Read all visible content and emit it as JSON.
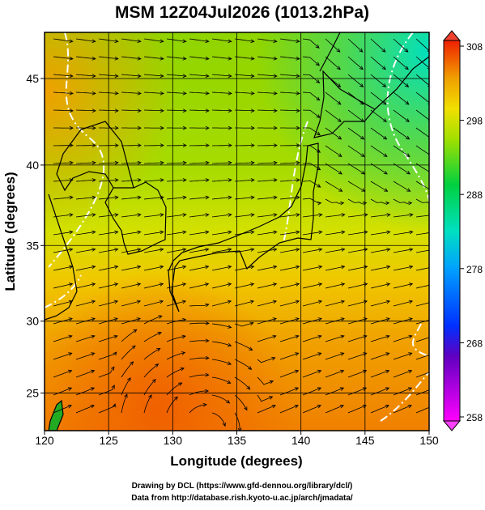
{
  "chart_data": {
    "type": "map",
    "title": "MSM 12Z04Jul2026 (1013.2hPa)",
    "x_label": "Longitude (degrees)",
    "y_label": "Latitude  (degrees)",
    "xlim": [
      120,
      150
    ],
    "xticks": [
      120,
      125,
      130,
      135,
      140,
      145,
      150
    ],
    "ylim": [
      22.3,
      47.5
    ],
    "yticks": [
      25,
      30,
      35,
      40,
      45
    ],
    "colorbar": {
      "lim": [
        258,
        308
      ],
      "ticks": [
        258,
        268,
        278,
        288,
        298,
        308
      ]
    },
    "footer": [
      "Drawing by DCL (https://www.gfd-dennou.org/library/dcl/)",
      "Data from http://database.rish.kyoto-u.ac.jp/arch/jmadata/"
    ]
  }
}
